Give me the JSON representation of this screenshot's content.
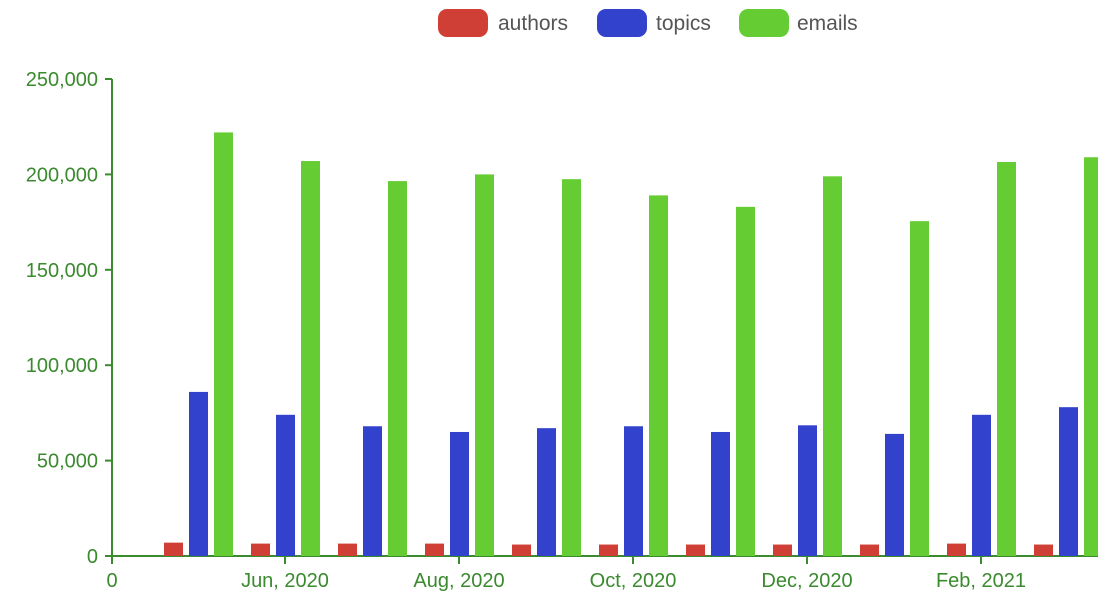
{
  "chart_data": {
    "type": "bar",
    "x_tick_labels": [
      "0",
      "Jun, 2020",
      "Aug, 2020",
      "Oct, 2020",
      "Dec, 2020",
      "Feb, 2021"
    ],
    "y_tick_labels": [
      "0",
      "50,000",
      "100,000",
      "150,000",
      "200,000",
      "250,000"
    ],
    "y_ticks": [
      0,
      50000,
      100000,
      150000,
      200000,
      250000
    ],
    "ylim": [
      0,
      250000
    ],
    "legend_position": "top",
    "grid": false,
    "series": [
      {
        "name": "authors",
        "color": "#d03f35",
        "values": [
          7000,
          6500,
          6500,
          6500,
          6000,
          6000,
          6000,
          6000,
          6000,
          6500,
          6000
        ]
      },
      {
        "name": "topics",
        "color": "#3342cc",
        "values": [
          86000,
          74000,
          68000,
          65000,
          67000,
          68000,
          65000,
          68500,
          64000,
          74000,
          78000
        ]
      },
      {
        "name": "emails",
        "color": "#66cc33",
        "values": [
          222000,
          207000,
          196500,
          200000,
          197500,
          189000,
          183000,
          199000,
          175500,
          206500,
          209000
        ]
      }
    ],
    "axis_color": "#3a8a2e"
  }
}
